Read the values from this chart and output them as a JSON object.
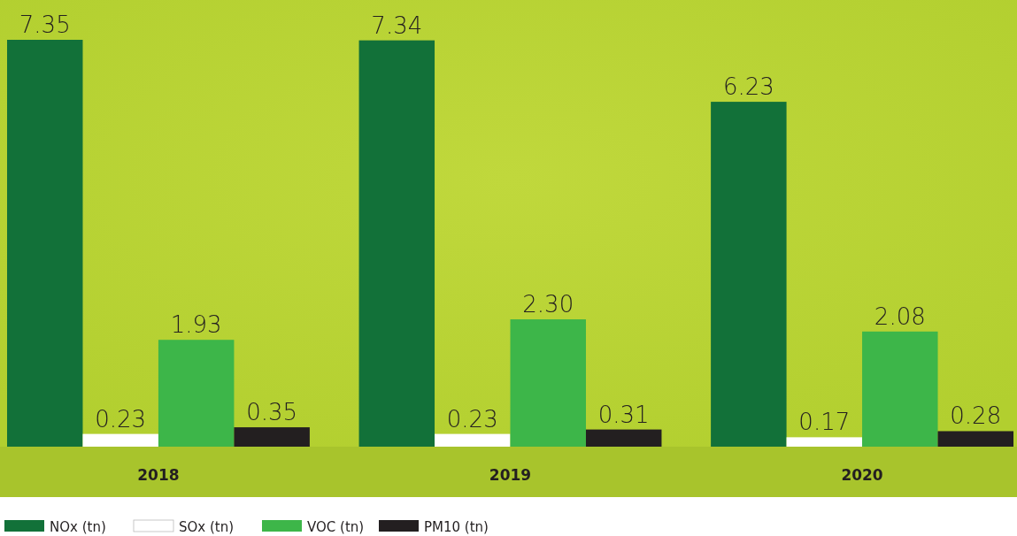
{
  "chart_data": {
    "type": "bar",
    "categories": [
      "2018",
      "2019",
      "2020"
    ],
    "series": [
      {
        "name": "NOx (tn)",
        "color": "#127139",
        "values": [
          7.35,
          7.34,
          6.23
        ],
        "value_labels": [
          "7.35",
          "7.34",
          "6.23"
        ]
      },
      {
        "name": "SOx (tn)",
        "color": "#ffffff",
        "values": [
          0.23,
          0.23,
          0.17
        ],
        "value_labels": [
          "0.23",
          "0.23",
          "0.17"
        ]
      },
      {
        "name": "VOC (tn)",
        "color": "#3db649",
        "values": [
          1.93,
          2.3,
          2.08
        ],
        "value_labels": [
          "1.93",
          "2.30",
          "2.08"
        ]
      },
      {
        "name": "PM10 (tn)",
        "color": "#231f20",
        "values": [
          0.35,
          0.31,
          0.28
        ],
        "value_labels": [
          "0.35",
          "0.31",
          "0.28"
        ]
      }
    ],
    "legend": "bottom"
  }
}
